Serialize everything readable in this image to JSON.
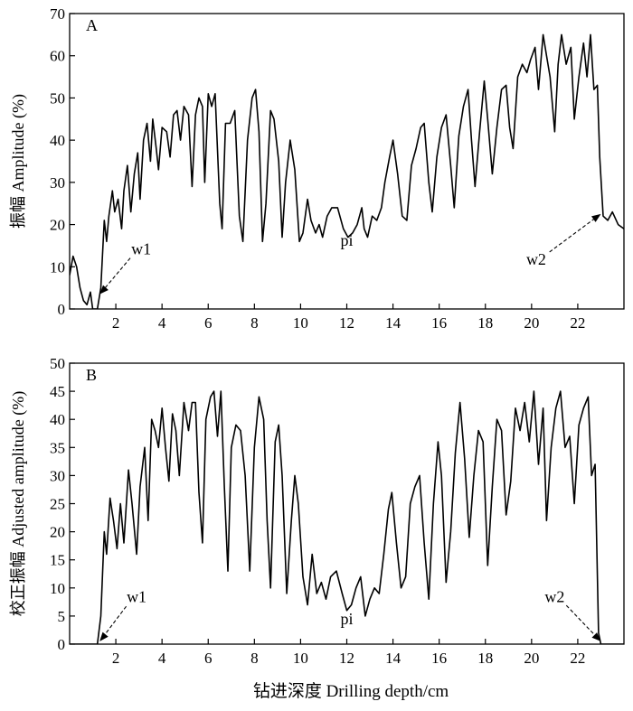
{
  "chart_data": [
    {
      "type": "line",
      "panel_label": "A",
      "ylabel": "振幅 Amplitude (%)",
      "xlim": [
        0,
        24
      ],
      "ylim": [
        0,
        70
      ],
      "x_ticks": [
        2,
        4,
        6,
        8,
        10,
        12,
        14,
        16,
        18,
        20,
        22
      ],
      "y_ticks": [
        0,
        10,
        20,
        30,
        40,
        50,
        60,
        70
      ],
      "grid": false,
      "legend": "none",
      "annotations": [
        {
          "text": "w1",
          "arrow_to": [
            1.3,
            3.5
          ],
          "text_at": [
            3.1,
            13
          ]
        },
        {
          "text": "pi",
          "at": [
            12.0,
            15
          ]
        },
        {
          "text": "w2",
          "arrow_to": [
            23.0,
            22.5
          ],
          "text_at": [
            20.2,
            10.5
          ]
        }
      ],
      "series": [
        {
          "color": "#000000",
          "points": [
            [
              0.0,
              8
            ],
            [
              0.15,
              12.5
            ],
            [
              0.3,
              10
            ],
            [
              0.45,
              5
            ],
            [
              0.6,
              2
            ],
            [
              0.75,
              1
            ],
            [
              0.9,
              4
            ],
            [
              1.0,
              0
            ],
            [
              1.2,
              0
            ],
            [
              1.35,
              5
            ],
            [
              1.5,
              21
            ],
            [
              1.6,
              16
            ],
            [
              1.7,
              22
            ],
            [
              1.85,
              28
            ],
            [
              1.95,
              23
            ],
            [
              2.1,
              26
            ],
            [
              2.25,
              19
            ],
            [
              2.35,
              28
            ],
            [
              2.5,
              34
            ],
            [
              2.65,
              23
            ],
            [
              2.8,
              32
            ],
            [
              2.95,
              37
            ],
            [
              3.05,
              26
            ],
            [
              3.2,
              40
            ],
            [
              3.35,
              44
            ],
            [
              3.5,
              35
            ],
            [
              3.6,
              45
            ],
            [
              3.75,
              38
            ],
            [
              3.85,
              33
            ],
            [
              4.0,
              43
            ],
            [
              4.2,
              42
            ],
            [
              4.35,
              36
            ],
            [
              4.5,
              46
            ],
            [
              4.65,
              47
            ],
            [
              4.8,
              40
            ],
            [
              4.95,
              48
            ],
            [
              5.15,
              46
            ],
            [
              5.3,
              29
            ],
            [
              5.45,
              46
            ],
            [
              5.6,
              50
            ],
            [
              5.75,
              48
            ],
            [
              5.85,
              30
            ],
            [
              6.0,
              51
            ],
            [
              6.15,
              48
            ],
            [
              6.3,
              51
            ],
            [
              6.5,
              25
            ],
            [
              6.6,
              19
            ],
            [
              6.75,
              44
            ],
            [
              6.95,
              44
            ],
            [
              7.15,
              47
            ],
            [
              7.35,
              22
            ],
            [
              7.5,
              16
            ],
            [
              7.7,
              40
            ],
            [
              7.9,
              50
            ],
            [
              8.05,
              52
            ],
            [
              8.2,
              42
            ],
            [
              8.35,
              16
            ],
            [
              8.5,
              25
            ],
            [
              8.7,
              47
            ],
            [
              8.85,
              45
            ],
            [
              9.05,
              35
            ],
            [
              9.2,
              17
            ],
            [
              9.35,
              30
            ],
            [
              9.55,
              40
            ],
            [
              9.75,
              33
            ],
            [
              9.95,
              16
            ],
            [
              10.1,
              18
            ],
            [
              10.3,
              26
            ],
            [
              10.45,
              21
            ],
            [
              10.65,
              18
            ],
            [
              10.8,
              20
            ],
            [
              10.95,
              17
            ],
            [
              11.15,
              22
            ],
            [
              11.35,
              24
            ],
            [
              11.6,
              24
            ],
            [
              11.85,
              19
            ],
            [
              12.05,
              17
            ],
            [
              12.25,
              18
            ],
            [
              12.45,
              20
            ],
            [
              12.65,
              24
            ],
            [
              12.75,
              19
            ],
            [
              12.9,
              17
            ],
            [
              13.1,
              22
            ],
            [
              13.3,
              21
            ],
            [
              13.5,
              24
            ],
            [
              13.65,
              30
            ],
            [
              13.85,
              36
            ],
            [
              14.0,
              40
            ],
            [
              14.2,
              32
            ],
            [
              14.4,
              22
            ],
            [
              14.6,
              21
            ],
            [
              14.8,
              34
            ],
            [
              15.0,
              38
            ],
            [
              15.2,
              43
            ],
            [
              15.35,
              44
            ],
            [
              15.55,
              30
            ],
            [
              15.7,
              23
            ],
            [
              15.9,
              36
            ],
            [
              16.1,
              43
            ],
            [
              16.3,
              46
            ],
            [
              16.5,
              34
            ],
            [
              16.65,
              24
            ],
            [
              16.85,
              41
            ],
            [
              17.05,
              48
            ],
            [
              17.25,
              52
            ],
            [
              17.4,
              40
            ],
            [
              17.55,
              29
            ],
            [
              17.75,
              42
            ],
            [
              17.95,
              54
            ],
            [
              18.1,
              45
            ],
            [
              18.3,
              32
            ],
            [
              18.5,
              43
            ],
            [
              18.7,
              52
            ],
            [
              18.9,
              53
            ],
            [
              19.05,
              43
            ],
            [
              19.2,
              38
            ],
            [
              19.4,
              55
            ],
            [
              19.6,
              58
            ],
            [
              19.8,
              56
            ],
            [
              19.95,
              59
            ],
            [
              20.15,
              62
            ],
            [
              20.3,
              52
            ],
            [
              20.5,
              65
            ],
            [
              20.65,
              60
            ],
            [
              20.8,
              55
            ],
            [
              21.0,
              42
            ],
            [
              21.15,
              58
            ],
            [
              21.3,
              65
            ],
            [
              21.5,
              58
            ],
            [
              21.7,
              62
            ],
            [
              21.85,
              45
            ],
            [
              22.05,
              55
            ],
            [
              22.25,
              63
            ],
            [
              22.4,
              55
            ],
            [
              22.55,
              65
            ],
            [
              22.7,
              52
            ],
            [
              22.85,
              53
            ],
            [
              22.95,
              36
            ],
            [
              23.1,
              22
            ],
            [
              23.3,
              21
            ],
            [
              23.5,
              23
            ],
            [
              23.75,
              20
            ],
            [
              24.0,
              19
            ]
          ]
        }
      ]
    },
    {
      "type": "line",
      "panel_label": "B",
      "ylabel": "校正振幅 Adjusted amplitude (%)",
      "xlabel": "钻进深度 Drilling depth/cm",
      "xlim": [
        0,
        24
      ],
      "ylim": [
        0,
        50
      ],
      "x_ticks": [
        2,
        4,
        6,
        8,
        10,
        12,
        14,
        16,
        18,
        20,
        22
      ],
      "y_ticks": [
        0,
        5,
        10,
        15,
        20,
        25,
        30,
        35,
        40,
        45,
        50
      ],
      "grid": false,
      "legend": "none",
      "annotations": [
        {
          "text": "w1",
          "arrow_to": [
            1.3,
            0.5
          ],
          "text_at": [
            2.9,
            7.5
          ]
        },
        {
          "text": "pi",
          "at": [
            12.0,
            3.5
          ]
        },
        {
          "text": "w2",
          "arrow_to": [
            23.0,
            0.5
          ],
          "text_at": [
            21.0,
            7.5
          ]
        }
      ],
      "series": [
        {
          "color": "#000000",
          "points": [
            [
              0.0,
              0
            ],
            [
              1.2,
              0
            ],
            [
              1.35,
              5
            ],
            [
              1.5,
              20
            ],
            [
              1.6,
              16
            ],
            [
              1.75,
              26
            ],
            [
              1.9,
              22
            ],
            [
              2.05,
              17
            ],
            [
              2.2,
              25
            ],
            [
              2.35,
              18
            ],
            [
              2.55,
              31
            ],
            [
              2.7,
              25
            ],
            [
              2.9,
              16
            ],
            [
              3.05,
              28
            ],
            [
              3.25,
              35
            ],
            [
              3.4,
              22
            ],
            [
              3.55,
              40
            ],
            [
              3.7,
              38
            ],
            [
              3.85,
              35
            ],
            [
              4.0,
              42
            ],
            [
              4.15,
              35
            ],
            [
              4.3,
              29
            ],
            [
              4.45,
              41
            ],
            [
              4.6,
              38
            ],
            [
              4.75,
              30
            ],
            [
              4.95,
              43
            ],
            [
              5.15,
              38
            ],
            [
              5.3,
              43
            ],
            [
              5.45,
              43
            ],
            [
              5.6,
              27
            ],
            [
              5.75,
              18
            ],
            [
              5.9,
              40
            ],
            [
              6.1,
              44
            ],
            [
              6.25,
              45
            ],
            [
              6.4,
              37
            ],
            [
              6.55,
              45
            ],
            [
              6.7,
              28
            ],
            [
              6.85,
              13
            ],
            [
              7.0,
              35
            ],
            [
              7.2,
              39
            ],
            [
              7.4,
              38
            ],
            [
              7.6,
              30
            ],
            [
              7.8,
              13
            ],
            [
              8.0,
              35
            ],
            [
              8.2,
              44
            ],
            [
              8.4,
              40
            ],
            [
              8.55,
              22
            ],
            [
              8.7,
              10
            ],
            [
              8.9,
              36
            ],
            [
              9.05,
              39
            ],
            [
              9.2,
              30
            ],
            [
              9.4,
              9
            ],
            [
              9.6,
              22
            ],
            [
              9.75,
              30
            ],
            [
              9.9,
              25
            ],
            [
              10.1,
              12
            ],
            [
              10.3,
              7
            ],
            [
              10.5,
              16
            ],
            [
              10.7,
              9
            ],
            [
              10.9,
              11
            ],
            [
              11.1,
              8
            ],
            [
              11.3,
              12
            ],
            [
              11.55,
              13
            ],
            [
              11.8,
              9
            ],
            [
              12.0,
              6
            ],
            [
              12.2,
              7
            ],
            [
              12.4,
              10
            ],
            [
              12.6,
              12
            ],
            [
              12.8,
              5
            ],
            [
              13.0,
              8
            ],
            [
              13.2,
              10
            ],
            [
              13.4,
              9
            ],
            [
              13.6,
              16
            ],
            [
              13.8,
              24
            ],
            [
              13.95,
              27
            ],
            [
              14.15,
              18
            ],
            [
              14.35,
              10
            ],
            [
              14.55,
              12
            ],
            [
              14.75,
              25
            ],
            [
              14.95,
              28
            ],
            [
              15.15,
              30
            ],
            [
              15.35,
              18
            ],
            [
              15.55,
              8
            ],
            [
              15.75,
              25
            ],
            [
              15.95,
              36
            ],
            [
              16.1,
              30
            ],
            [
              16.3,
              11
            ],
            [
              16.5,
              20
            ],
            [
              16.7,
              34
            ],
            [
              16.9,
              43
            ],
            [
              17.1,
              33
            ],
            [
              17.3,
              19
            ],
            [
              17.5,
              30
            ],
            [
              17.7,
              38
            ],
            [
              17.9,
              36
            ],
            [
              18.1,
              14
            ],
            [
              18.3,
              28
            ],
            [
              18.5,
              40
            ],
            [
              18.7,
              38
            ],
            [
              18.9,
              23
            ],
            [
              19.1,
              29
            ],
            [
              19.3,
              42
            ],
            [
              19.5,
              38
            ],
            [
              19.7,
              43
            ],
            [
              19.9,
              36
            ],
            [
              20.1,
              45
            ],
            [
              20.3,
              32
            ],
            [
              20.5,
              42
            ],
            [
              20.65,
              22
            ],
            [
              20.85,
              35
            ],
            [
              21.05,
              42
            ],
            [
              21.25,
              45
            ],
            [
              21.45,
              35
            ],
            [
              21.65,
              37
            ],
            [
              21.85,
              25
            ],
            [
              22.05,
              39
            ],
            [
              22.25,
              42
            ],
            [
              22.45,
              44
            ],
            [
              22.6,
              30
            ],
            [
              22.75,
              32
            ],
            [
              22.9,
              2
            ],
            [
              23.0,
              0
            ],
            [
              24.0,
              0
            ]
          ]
        }
      ]
    }
  ]
}
